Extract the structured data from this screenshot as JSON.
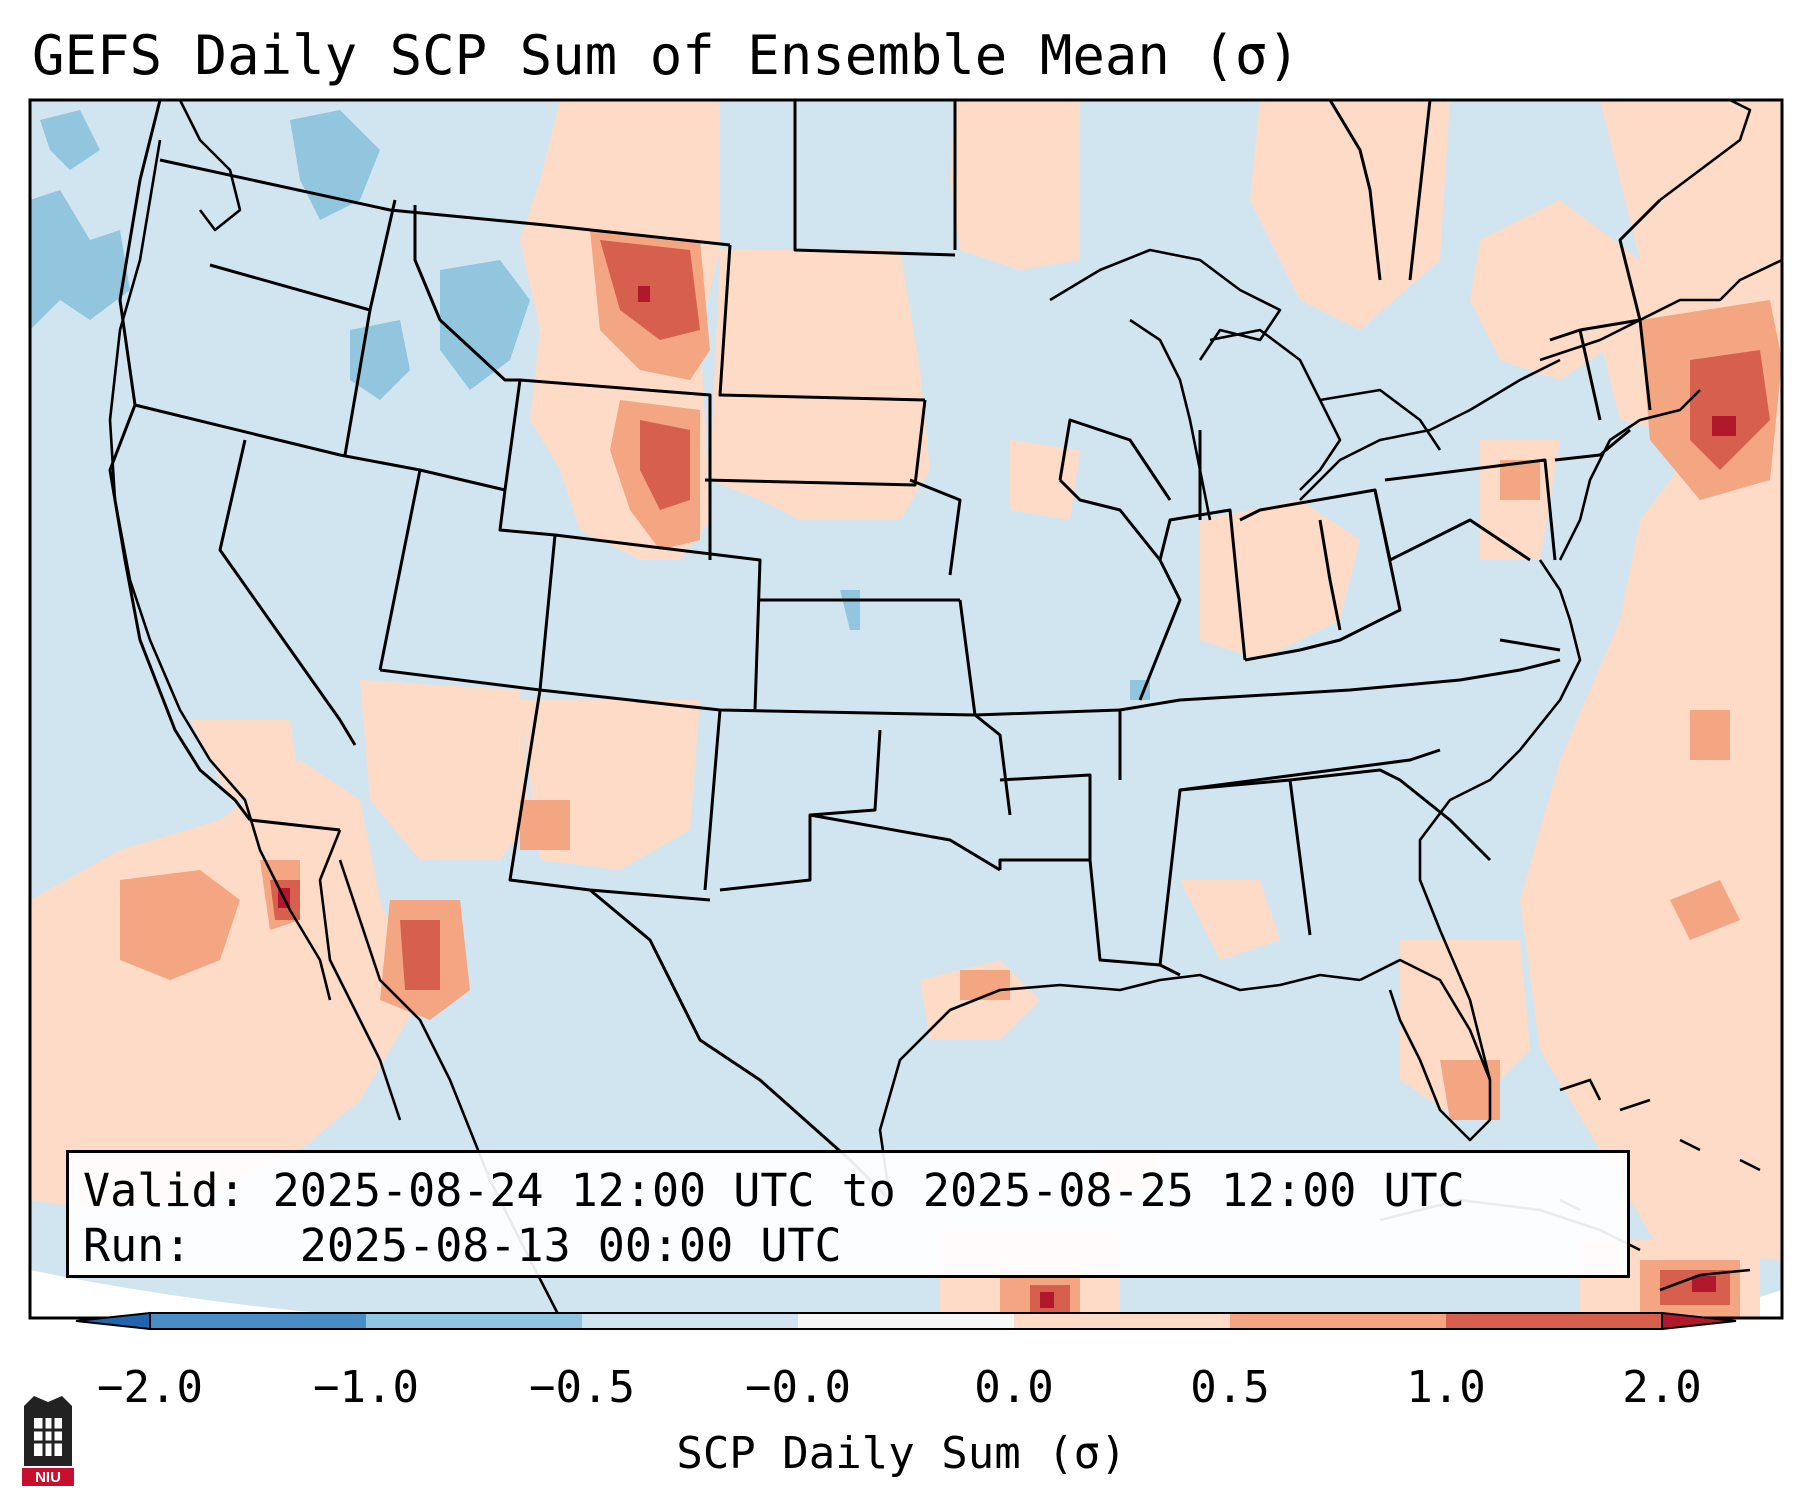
{
  "title": "GEFS Daily SCP Sum of Ensemble Mean (σ)",
  "info": {
    "valid_label": "Valid:",
    "valid_value": "2025-08-24 12:00 UTC to 2025-08-25 12:00 UTC",
    "run_label": "Run:",
    "run_value": "2025-08-13 00:00 UTC"
  },
  "colorbar": {
    "label": "SCP Daily Sum (σ)",
    "ticks": [
      "−2.0",
      "−1.0",
      "−0.5",
      "−0.0",
      "0.0",
      "0.5",
      "1.0",
      "2.0"
    ],
    "colors": [
      "#4a8dc5",
      "#92c5de",
      "#d1e5f0",
      "#f7f7f7",
      "#fddbc7",
      "#f4a582",
      "#d6604d"
    ],
    "extend_low_color": "#2166ac",
    "extend_high_color": "#b2182b"
  },
  "map": {
    "background_color": "#d1e5f0",
    "line_color": "#000000",
    "ocean_edge_color": "#ffffff"
  },
  "logo": {
    "text": "NIU",
    "color": "#c8102e"
  }
}
